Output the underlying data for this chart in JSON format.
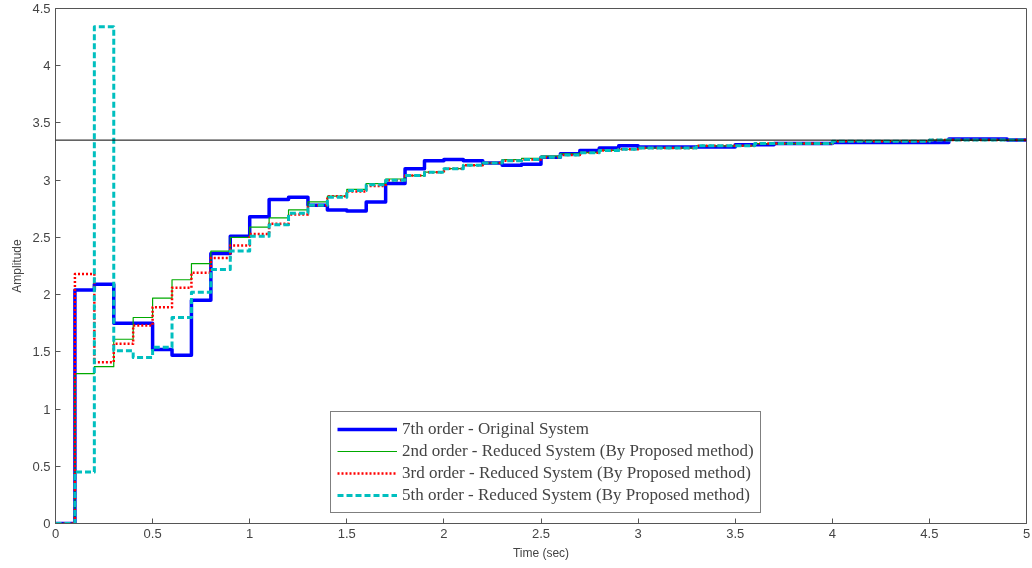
{
  "chart_data": {
    "type": "step",
    "xlabel": "Time (sec)",
    "ylabel": "Amplitude",
    "xlim": [
      0,
      5
    ],
    "ylim": [
      0,
      4.5
    ],
    "xticks": [
      0,
      0.5,
      1,
      1.5,
      2,
      2.5,
      3,
      3.5,
      4,
      4.5,
      5
    ],
    "yticks": [
      0,
      0.5,
      1,
      1.5,
      2,
      2.5,
      3,
      3.5,
      4,
      4.5
    ],
    "grid": false,
    "legend": "bottom",
    "ref_lines": [
      {
        "axis": "y",
        "value": 3.35,
        "color": "#000000"
      }
    ],
    "series": [
      {
        "name": "7th order - Original System",
        "color": "#0000ff",
        "line_style": "solid",
        "x": [
          0,
          0.1,
          0.2,
          0.3,
          0.4,
          0.5,
          0.6,
          0.7,
          0.8,
          0.9,
          1.0,
          1.1,
          1.2,
          1.3,
          1.4,
          1.5,
          1.6,
          1.7,
          1.8,
          1.9,
          2.0,
          2.1,
          2.2,
          2.3,
          2.4,
          2.5,
          2.6,
          2.7,
          2.8,
          2.9,
          3.0,
          3.3,
          3.5,
          3.7,
          4.0,
          4.6,
          4.9,
          5.0
        ],
        "values": [
          0,
          2.04,
          2.09,
          1.75,
          1.75,
          1.52,
          1.47,
          1.95,
          2.36,
          2.51,
          2.68,
          2.83,
          2.85,
          2.78,
          2.74,
          2.73,
          2.81,
          2.97,
          3.1,
          3.17,
          3.18,
          3.17,
          3.15,
          3.13,
          3.14,
          3.2,
          3.23,
          3.26,
          3.28,
          3.3,
          3.29,
          3.29,
          3.31,
          3.32,
          3.33,
          3.36,
          3.35,
          3.35
        ]
      },
      {
        "name": "2nd order - Reduced System (By Proposed method)",
        "color": "#00aa00",
        "line_style": "solid",
        "x": [
          0,
          0.1,
          0.2,
          0.3,
          0.4,
          0.5,
          0.6,
          0.7,
          0.8,
          0.9,
          1.0,
          1.1,
          1.2,
          1.3,
          1.4,
          1.5,
          1.6,
          1.7,
          1.8,
          1.9,
          2.0,
          2.1,
          2.2,
          2.3,
          2.4,
          2.5,
          2.6,
          2.7,
          2.8,
          2.9,
          3.0,
          3.3,
          3.6,
          4.0,
          4.5,
          5.0
        ],
        "values": [
          0,
          1.31,
          1.37,
          1.61,
          1.8,
          1.97,
          2.13,
          2.27,
          2.38,
          2.5,
          2.59,
          2.67,
          2.74,
          2.81,
          2.86,
          2.92,
          2.97,
          3.01,
          3.04,
          3.07,
          3.1,
          3.13,
          3.15,
          3.18,
          3.19,
          3.21,
          3.23,
          3.24,
          3.26,
          3.27,
          3.28,
          3.3,
          3.32,
          3.34,
          3.35,
          3.35
        ]
      },
      {
        "name": "3rd order - Reduced System (By Proposed method)",
        "color": "#ff0000",
        "line_style": "dotted",
        "x": [
          0,
          0.1,
          0.2,
          0.3,
          0.4,
          0.5,
          0.6,
          0.7,
          0.8,
          0.9,
          1.0,
          1.1,
          1.2,
          1.3,
          1.4,
          1.5,
          1.6,
          1.7,
          1.8,
          1.9,
          2.0,
          2.1,
          2.2,
          2.3,
          2.4,
          2.5,
          2.6,
          2.7,
          2.8,
          2.9,
          3.0,
          3.3,
          3.6,
          4.0,
          4.5,
          5.0
        ],
        "values": [
          0,
          2.18,
          1.41,
          1.57,
          1.73,
          1.89,
          2.06,
          2.19,
          2.32,
          2.43,
          2.53,
          2.62,
          2.7,
          2.78,
          2.86,
          2.9,
          2.95,
          3.0,
          3.04,
          3.07,
          3.1,
          3.13,
          3.15,
          3.17,
          3.18,
          3.2,
          3.22,
          3.24,
          3.26,
          3.27,
          3.28,
          3.3,
          3.32,
          3.34,
          3.35,
          3.35
        ]
      },
      {
        "name": "5th order - Reduced System (By Proposed method)",
        "color": "#00bfbf",
        "line_style": "dashed",
        "x": [
          0,
          0.1,
          0.2,
          0.3,
          0.4,
          0.5,
          0.6,
          0.7,
          0.8,
          0.9,
          1.0,
          1.1,
          1.2,
          1.3,
          1.4,
          1.5,
          1.6,
          1.7,
          1.8,
          1.9,
          2.0,
          2.1,
          2.2,
          2.3,
          2.4,
          2.5,
          2.6,
          2.7,
          2.8,
          2.9,
          3.0,
          3.3,
          3.6,
          4.0,
          4.5,
          5.0
        ],
        "values": [
          0,
          0.45,
          4.34,
          1.51,
          1.45,
          1.54,
          1.8,
          2.02,
          2.22,
          2.38,
          2.51,
          2.61,
          2.71,
          2.78,
          2.85,
          2.91,
          2.96,
          3.0,
          3.04,
          3.07,
          3.1,
          3.13,
          3.15,
          3.17,
          3.18,
          3.2,
          3.22,
          3.24,
          3.26,
          3.27,
          3.28,
          3.3,
          3.32,
          3.34,
          3.35,
          3.35
        ]
      }
    ]
  }
}
